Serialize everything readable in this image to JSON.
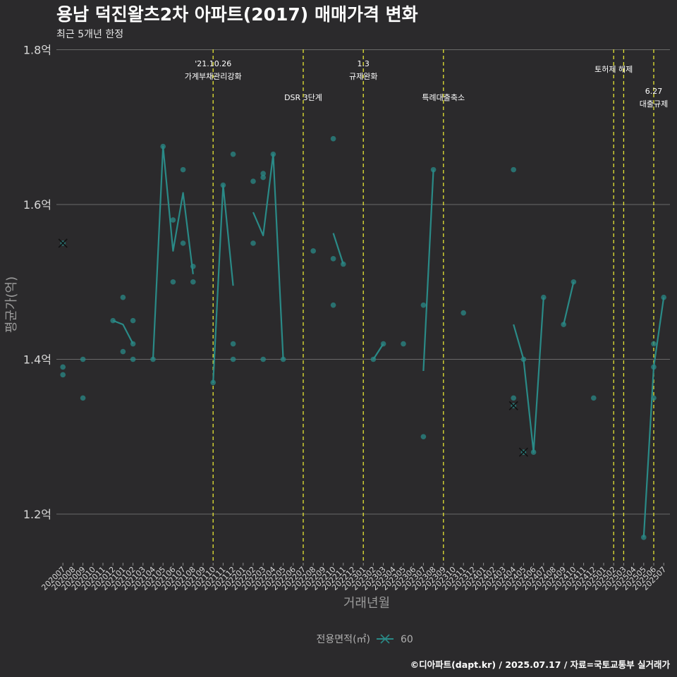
{
  "chart_data": {
    "type": "line",
    "title": "용남 덕진왈츠2차 아파트(2017) 매매가격 변화",
    "subtitle": "최근 5개년 한정",
    "xlabel": "거래년월",
    "ylabel": "평균가(억)",
    "caption": "©디아파트(dapt.kr) / 2025.07.17 / 자료=국토교통부 실거래가",
    "ylim": [
      1.15,
      1.8
    ],
    "yticks": [
      1.2,
      1.4,
      1.6,
      1.8
    ],
    "ytick_labels": [
      "1.2억",
      "1.4억",
      "1.6억",
      "1.8억"
    ],
    "categories": [
      "202007",
      "202008",
      "202009",
      "202010",
      "202011",
      "202012",
      "202101",
      "202102",
      "202103",
      "202104",
      "202105",
      "202106",
      "202107",
      "202108",
      "202109",
      "202110",
      "202111",
      "202112",
      "202201",
      "202202",
      "202203",
      "202204",
      "202205",
      "202206",
      "202207",
      "202208",
      "202209",
      "202210",
      "202211",
      "202212",
      "202301",
      "202302",
      "202303",
      "202304",
      "202305",
      "202306",
      "202307",
      "202308",
      "202309",
      "202310",
      "202311",
      "202312",
      "202401",
      "202402",
      "202403",
      "202404",
      "202405",
      "202406",
      "202407",
      "202408",
      "202409",
      "202410",
      "202411",
      "202412",
      "202501",
      "202502",
      "202503",
      "202504",
      "202505",
      "202506",
      "202507"
    ],
    "legend": {
      "title": "전용면적(㎡)",
      "label": "60"
    },
    "series": [
      {
        "name": "60",
        "color": "#2a8a87",
        "line_segments": [
          [
            {
              "x": "202012",
              "y": 1.45
            },
            {
              "x": "202101",
              "y": 1.445
            },
            {
              "x": "202102",
              "y": 1.42
            }
          ],
          [
            {
              "x": "202104",
              "y": 1.4
            },
            {
              "x": "202105",
              "y": 1.675
            },
            {
              "x": "202106",
              "y": 1.54
            },
            {
              "x": "202107",
              "y": 1.615
            },
            {
              "x": "202108",
              "y": 1.51
            }
          ],
          [
            {
              "x": "202110",
              "y": 1.37
            },
            {
              "x": "202111",
              "y": 1.625
            },
            {
              "x": "202112",
              "y": 1.495
            }
          ],
          [
            {
              "x": "202202",
              "y": 1.59
            },
            {
              "x": "202203",
              "y": 1.56
            },
            {
              "x": "202204",
              "y": 1.665
            },
            {
              "x": "202205",
              "y": 1.4
            }
          ],
          [
            {
              "x": "202210",
              "y": 1.563
            },
            {
              "x": "202211",
              "y": 1.523
            }
          ],
          [
            {
              "x": "202302",
              "y": 1.4
            },
            {
              "x": "202303",
              "y": 1.42
            }
          ],
          [
            {
              "x": "202307",
              "y": 1.385
            },
            {
              "x": "202308",
              "y": 1.645
            }
          ],
          [
            {
              "x": "202404",
              "y": 1.445
            },
            {
              "x": "202405",
              "y": 1.4
            },
            {
              "x": "202406",
              "y": 1.28
            },
            {
              "x": "202407",
              "y": 1.48
            }
          ],
          [
            {
              "x": "202409",
              "y": 1.445
            },
            {
              "x": "202410",
              "y": 1.5
            }
          ],
          [
            {
              "x": "202505",
              "y": 1.17
            },
            {
              "x": "202506",
              "y": 1.39
            },
            {
              "x": "202507",
              "y": 1.48
            }
          ]
        ],
        "points": [
          {
            "x": "202007",
            "y": 1.55
          },
          {
            "x": "202007",
            "y": 1.39
          },
          {
            "x": "202007",
            "y": 1.38
          },
          {
            "x": "202009",
            "y": 1.4
          },
          {
            "x": "202009",
            "y": 1.35
          },
          {
            "x": "202012",
            "y": 1.45
          },
          {
            "x": "202101",
            "y": 1.48
          },
          {
            "x": "202101",
            "y": 1.41
          },
          {
            "x": "202102",
            "y": 1.45
          },
          {
            "x": "202102",
            "y": 1.42
          },
          {
            "x": "202102",
            "y": 1.4
          },
          {
            "x": "202104",
            "y": 1.4
          },
          {
            "x": "202105",
            "y": 1.675
          },
          {
            "x": "202106",
            "y": 1.58
          },
          {
            "x": "202106",
            "y": 1.5
          },
          {
            "x": "202107",
            "y": 1.645
          },
          {
            "x": "202107",
            "y": 1.55
          },
          {
            "x": "202108",
            "y": 1.52
          },
          {
            "x": "202108",
            "y": 1.5
          },
          {
            "x": "202110",
            "y": 1.37
          },
          {
            "x": "202111",
            "y": 1.625
          },
          {
            "x": "202112",
            "y": 1.665
          },
          {
            "x": "202112",
            "y": 1.42
          },
          {
            "x": "202112",
            "y": 1.4
          },
          {
            "x": "202202",
            "y": 1.63
          },
          {
            "x": "202202",
            "y": 1.55
          },
          {
            "x": "202203",
            "y": 1.64
          },
          {
            "x": "202203",
            "y": 1.635
          },
          {
            "x": "202203",
            "y": 1.4
          },
          {
            "x": "202204",
            "y": 1.665
          },
          {
            "x": "202205",
            "y": 1.4
          },
          {
            "x": "202208",
            "y": 1.54
          },
          {
            "x": "202210",
            "y": 1.685
          },
          {
            "x": "202210",
            "y": 1.53
          },
          {
            "x": "202210",
            "y": 1.47
          },
          {
            "x": "202211",
            "y": 1.523
          },
          {
            "x": "202302",
            "y": 1.4
          },
          {
            "x": "202303",
            "y": 1.42
          },
          {
            "x": "202305",
            "y": 1.42
          },
          {
            "x": "202307",
            "y": 1.47
          },
          {
            "x": "202307",
            "y": 1.3
          },
          {
            "x": "202308",
            "y": 1.645
          },
          {
            "x": "202311",
            "y": 1.46
          },
          {
            "x": "202404",
            "y": 1.645
          },
          {
            "x": "202404",
            "y": 1.35
          },
          {
            "x": "202404",
            "y": 1.34
          },
          {
            "x": "202405",
            "y": 1.4
          },
          {
            "x": "202405",
            "y": 1.28
          },
          {
            "x": "202406",
            "y": 1.28
          },
          {
            "x": "202407",
            "y": 1.48
          },
          {
            "x": "202409",
            "y": 1.445
          },
          {
            "x": "202410",
            "y": 1.5
          },
          {
            "x": "202412",
            "y": 1.35
          },
          {
            "x": "202505",
            "y": 1.17
          },
          {
            "x": "202506",
            "y": 1.42
          },
          {
            "x": "202506",
            "y": 1.39
          },
          {
            "x": "202506",
            "y": 1.35
          },
          {
            "x": "202507",
            "y": 1.48
          }
        ],
        "cross_points": [
          {
            "x": "202007",
            "y": 1.55
          },
          {
            "x": "202404",
            "y": 1.34
          },
          {
            "x": "202405",
            "y": 1.28
          }
        ]
      }
    ],
    "events": [
      {
        "x": "202110",
        "lines": [
          "'21.10.26",
          "가계부채관리강화"
        ],
        "level": 1
      },
      {
        "x": "202207",
        "lines": [
          "DSR 3단계"
        ],
        "level": 2
      },
      {
        "x": "202301",
        "lines": [
          "1.3",
          "규제완화"
        ],
        "level": 1
      },
      {
        "x": "202309",
        "lines": [
          "특례대출축소"
        ],
        "level": 2
      },
      {
        "x": "202502",
        "lines": [
          "토허제 해제"
        ],
        "level": 1
      },
      {
        "x": "202503",
        "lines": [],
        "level": 1
      },
      {
        "x": "202506",
        "lines": [
          "6.27",
          "대출규제"
        ],
        "level": 3
      }
    ],
    "colors": {
      "background": "#2b2a2c",
      "grid": "#6a6a6a",
      "event_line": "#e6e633",
      "series": "#2a8a87"
    }
  }
}
